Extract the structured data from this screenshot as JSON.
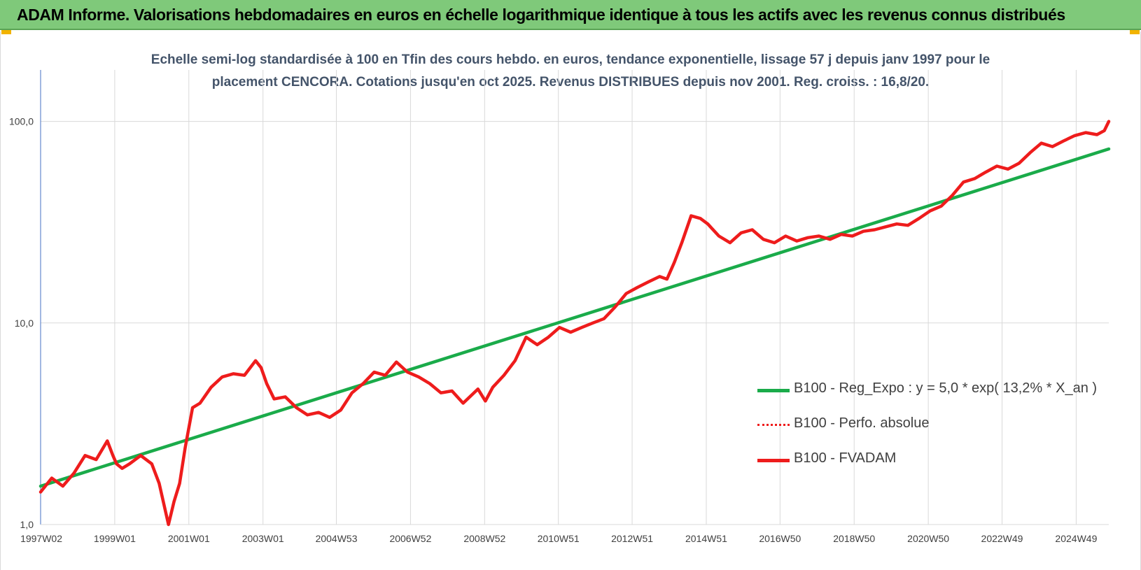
{
  "banner": {
    "title": "ADAM Informe. Valorisations hebdomadaires en euros en échelle logarithmique identique à tous les actifs avec les revenus connus distribués"
  },
  "chart_data": {
    "type": "line",
    "title_line1": "Echelle semi-log standardisée à 100 en Tfin des cours hebdo. en euros, tendance exponentielle, lissage 57 j depuis janv 1997 pour le",
    "title_line2": "placement CENCORA. Cotations jusqu'en oct 2025. Revenus DISTRIBUES depuis nov 2001. Reg. croiss. : 16,8/20.",
    "y_scale": "log",
    "ylim": [
      1,
      180
    ],
    "y_ticks": [
      {
        "value": 1,
        "label": "1,0"
      },
      {
        "value": 10,
        "label": "10,0"
      },
      {
        "value": 100,
        "label": "100,0"
      }
    ],
    "xlim": [
      1997.0,
      2025.82
    ],
    "x_ticks": [
      {
        "value": 1997.02,
        "label": "1997W02"
      },
      {
        "value": 1999.0,
        "label": "1999W01"
      },
      {
        "value": 2001.0,
        "label": "2001W01"
      },
      {
        "value": 2003.0,
        "label": "2003W01"
      },
      {
        "value": 2004.98,
        "label": "2004W53"
      },
      {
        "value": 2006.98,
        "label": "2006W52"
      },
      {
        "value": 2008.98,
        "label": "2008W52"
      },
      {
        "value": 2010.97,
        "label": "2010W51"
      },
      {
        "value": 2012.96,
        "label": "2012W51"
      },
      {
        "value": 2014.96,
        "label": "2014W51"
      },
      {
        "value": 2016.95,
        "label": "2016W50"
      },
      {
        "value": 2018.95,
        "label": "2018W50"
      },
      {
        "value": 2020.95,
        "label": "2020W50"
      },
      {
        "value": 2022.94,
        "label": "2022W49"
      },
      {
        "value": 2024.94,
        "label": "2024W49"
      }
    ],
    "grid": true,
    "legend_position": "bottom-right",
    "series": [
      {
        "name": "B100 - Reg_Expo : y = 5,0 * exp( 13,2% *  X_an )",
        "color": "#1aab4a",
        "style": "solid",
        "x": [
          1997.0,
          2025.82
        ],
        "y": [
          1.55,
          73
        ]
      },
      {
        "name": "B100 - Perfo. absolue",
        "color": "#ee1c1c",
        "style": "dotted",
        "x": [],
        "y": []
      },
      {
        "name": "B100 - FVADAM",
        "color": "#ee1c1c",
        "style": "solid",
        "x": [
          1997.0,
          1997.3,
          1997.6,
          1997.9,
          1998.2,
          1998.5,
          1998.8,
          1998.95,
          1999.05,
          1999.2,
          1999.4,
          1999.7,
          2000.0,
          2000.2,
          2000.45,
          2000.6,
          2000.75,
          2000.9,
          2001.1,
          2001.3,
          2001.6,
          2001.9,
          2002.2,
          2002.5,
          2002.8,
          2002.95,
          2003.1,
          2003.3,
          2003.6,
          2003.9,
          2004.2,
          2004.5,
          2004.8,
          2005.1,
          2005.4,
          2005.7,
          2006.0,
          2006.3,
          2006.6,
          2006.9,
          2007.2,
          2007.5,
          2007.8,
          2008.1,
          2008.4,
          2008.8,
          2009.0,
          2009.2,
          2009.5,
          2009.8,
          2010.1,
          2010.4,
          2010.7,
          2011.0,
          2011.3,
          2011.6,
          2011.9,
          2012.2,
          2012.5,
          2012.8,
          2013.1,
          2013.4,
          2013.7,
          2013.9,
          2014.1,
          2014.3,
          2014.55,
          2014.8,
          2015.0,
          2015.3,
          2015.6,
          2015.9,
          2016.2,
          2016.5,
          2016.8,
          2017.1,
          2017.4,
          2017.7,
          2018.0,
          2018.3,
          2018.6,
          2018.9,
          2019.2,
          2019.5,
          2019.8,
          2020.1,
          2020.4,
          2020.7,
          2021.0,
          2021.3,
          2021.6,
          2021.9,
          2022.2,
          2022.5,
          2022.8,
          2023.1,
          2023.4,
          2023.7,
          2024.0,
          2024.3,
          2024.6,
          2024.9,
          2025.2,
          2025.5,
          2025.7,
          2025.82
        ],
        "y": [
          1.45,
          1.7,
          1.55,
          1.8,
          2.2,
          2.1,
          2.6,
          2.2,
          2.0,
          1.9,
          2.0,
          2.2,
          2.0,
          1.6,
          1.0,
          1.3,
          1.6,
          2.4,
          3.8,
          4.0,
          4.8,
          5.4,
          5.6,
          5.5,
          6.5,
          6.0,
          5.0,
          4.2,
          4.3,
          3.8,
          3.5,
          3.6,
          3.4,
          3.7,
          4.5,
          5.0,
          5.7,
          5.5,
          6.4,
          5.7,
          5.4,
          5.0,
          4.5,
          4.6,
          4.0,
          4.7,
          4.1,
          4.8,
          5.5,
          6.5,
          8.5,
          7.8,
          8.5,
          9.5,
          9.0,
          9.5,
          10.0,
          10.5,
          12.0,
          14.0,
          15.0,
          16.0,
          17.0,
          16.5,
          20.0,
          25.0,
          34.0,
          33.0,
          31.0,
          27.0,
          25.0,
          28.0,
          29.0,
          26.0,
          25.0,
          27.0,
          25.5,
          26.5,
          27.0,
          26.0,
          27.5,
          27.0,
          28.5,
          29.0,
          30.0,
          31.0,
          30.5,
          33.0,
          36.0,
          38.0,
          43.0,
          50.0,
          52.0,
          56.0,
          60.0,
          58.0,
          62.0,
          70.0,
          78.0,
          75.0,
          80.0,
          85.0,
          88.0,
          86.0,
          90.0,
          100.0
        ]
      }
    ]
  }
}
